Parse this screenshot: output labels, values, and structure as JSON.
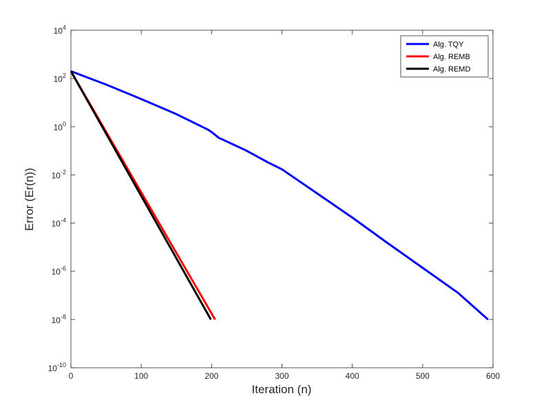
{
  "chart_data": {
    "type": "line",
    "title": "",
    "xlabel": "Iteration (n)",
    "ylabel": "Error (Er(n))",
    "xlim": [
      0,
      600
    ],
    "ylim": [
      1e-10,
      10000.0
    ],
    "yscale": "log",
    "xticks": [
      "0",
      "100",
      "200",
      "300",
      "400",
      "500",
      "600"
    ],
    "yticks": [
      {
        "base": "10",
        "exp": "-10"
      },
      {
        "base": "10",
        "exp": "-8"
      },
      {
        "base": "10",
        "exp": "-6"
      },
      {
        "base": "10",
        "exp": "-4"
      },
      {
        "base": "10",
        "exp": "-2"
      },
      {
        "base": "10",
        "exp": "0"
      },
      {
        "base": "10",
        "exp": "2"
      },
      {
        "base": "10",
        "exp": "4"
      }
    ],
    "grid": false,
    "legend_position": "top-right",
    "series": [
      {
        "name": "Alg. TQY",
        "color": "#0000ff",
        "x": [
          0,
          50,
          100,
          150,
          195,
          200,
          210,
          250,
          280,
          300,
          320,
          350,
          400,
          450,
          500,
          550,
          593
        ],
        "y": [
          200,
          56,
          14,
          3.3,
          0.75,
          0.6,
          0.35,
          0.1,
          0.033,
          0.017,
          0.0068,
          0.0017,
          0.00017,
          1.5e-05,
          1.4e-06,
          1.3e-07,
          1e-08
        ]
      },
      {
        "name": "Alg. REMB",
        "color": "#ff0000",
        "x": [
          0,
          205
        ],
        "y": [
          200,
          1e-08
        ]
      },
      {
        "name": "Alg. REMD",
        "color": "#000000",
        "x": [
          0,
          199
        ],
        "y": [
          200,
          1e-08
        ]
      }
    ]
  }
}
